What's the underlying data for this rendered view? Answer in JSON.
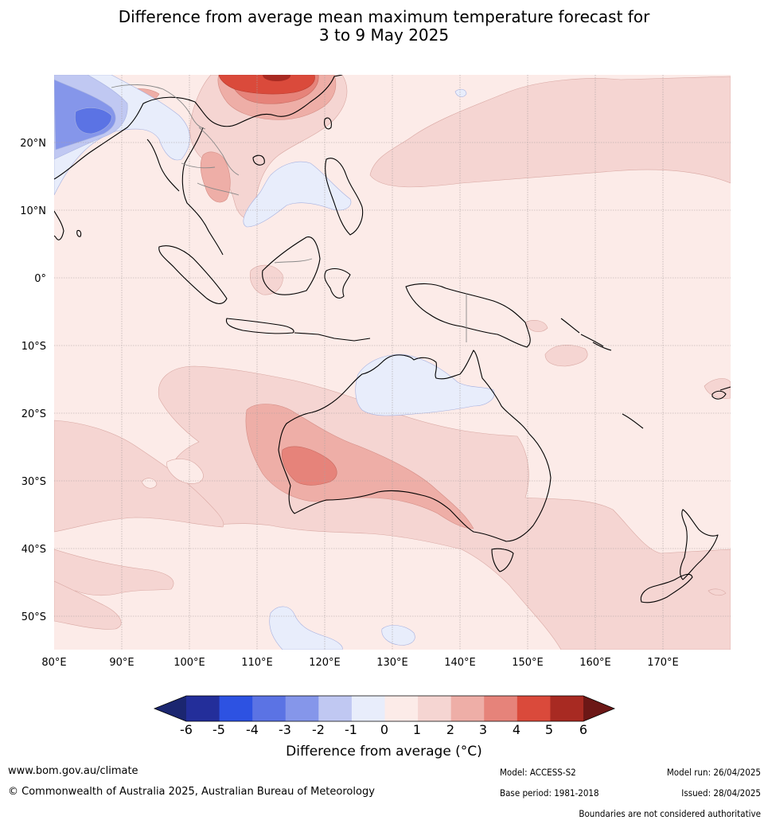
{
  "title": {
    "line1": "Difference from average mean maximum temperature forecast for",
    "line2": "3 to 9 May 2025"
  },
  "map": {
    "lon_range": [
      80,
      180
    ],
    "lat_range": [
      -55,
      30
    ],
    "lat_labels": [
      {
        "value": 20,
        "text": "20°N"
      },
      {
        "value": 10,
        "text": "10°N"
      },
      {
        "value": 0,
        "text": "0°"
      },
      {
        "value": -10,
        "text": "10°S"
      },
      {
        "value": -20,
        "text": "20°S"
      },
      {
        "value": -30,
        "text": "30°S"
      },
      {
        "value": -40,
        "text": "40°S"
      },
      {
        "value": -50,
        "text": "50°S"
      }
    ],
    "lon_labels": [
      {
        "value": 80,
        "text": "80°E"
      },
      {
        "value": 90,
        "text": "90°E"
      },
      {
        "value": 100,
        "text": "100°E"
      },
      {
        "value": 110,
        "text": "110°E"
      },
      {
        "value": 120,
        "text": "120°E"
      },
      {
        "value": 130,
        "text": "130°E"
      },
      {
        "value": 140,
        "text": "140°E"
      },
      {
        "value": 150,
        "text": "150°E"
      },
      {
        "value": 160,
        "text": "160°E"
      },
      {
        "value": 170,
        "text": "170°E"
      }
    ],
    "gridlines": true
  },
  "colorbar": {
    "labels": [
      "-6",
      "-5",
      "-4",
      "-3",
      "-2",
      "-1",
      "0",
      "1",
      "2",
      "3",
      "4",
      "5",
      "6"
    ],
    "colors": [
      "#232e9a",
      "#2d52e2",
      "#5b73e4",
      "#8596ea",
      "#c0c8f2",
      "#e8edfb",
      "#fcebe8",
      "#f5d5d2",
      "#eeaea7",
      "#e6837a",
      "#da4a3b",
      "#a82a22"
    ],
    "under_color": "#1b2670",
    "over_color": "#6c1716",
    "title": "Difference from average (°C)"
  },
  "footer": {
    "website": "www.bom.gov.au/climate",
    "copyright": "© Commonwealth of Australia 2025, Australian Bureau of Meteorology",
    "model": "Model: ACCESS-S2",
    "base_period": "Base period: 1981-2018",
    "model_run": "Model run: 26/04/2025",
    "issued": "Issued: 28/04/2025",
    "disclaimer": "Boundaries are not considered authoritative"
  }
}
